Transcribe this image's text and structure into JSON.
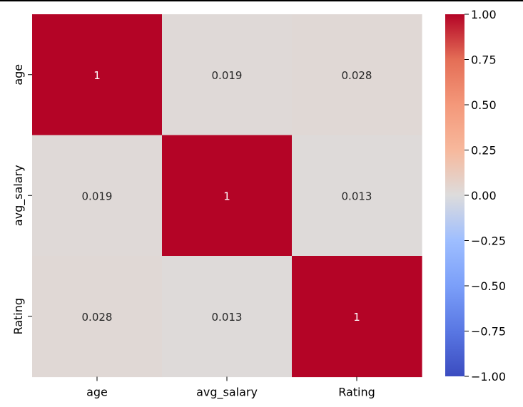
{
  "chart_data": {
    "type": "heatmap",
    "title": "",
    "xlabel": "",
    "ylabel": "",
    "x_categories": [
      "age",
      "avg_salary",
      "Rating"
    ],
    "y_categories": [
      "age",
      "avg_salary",
      "Rating"
    ],
    "values": [
      [
        1,
        0.019,
        0.028
      ],
      [
        0.019,
        1,
        0.013
      ],
      [
        0.028,
        0.013,
        1
      ]
    ],
    "cell_labels": [
      [
        "1",
        "0.019",
        "0.028"
      ],
      [
        "0.019",
        "1",
        "0.013"
      ],
      [
        "0.028",
        "0.013",
        "1"
      ]
    ],
    "colormap": "coolwarm",
    "vmin": -1.0,
    "vmax": 1.0,
    "colorbar_ticks": [
      1.0,
      0.75,
      0.5,
      0.25,
      0.0,
      -0.25,
      -0.5,
      -0.75,
      -1.0
    ],
    "colorbar_tick_labels": [
      "1.00",
      "0.75",
      "0.50",
      "0.25",
      "0.00",
      "−0.25",
      "−0.50",
      "−0.75",
      "−1.00"
    ],
    "colorbar_position": "right",
    "grid": false,
    "colors": {
      "high": "#b40426",
      "neutral": "#dddcdc",
      "low": "#3b4cc0",
      "dark_text": "#262626",
      "light_text": "#ffffff"
    }
  }
}
